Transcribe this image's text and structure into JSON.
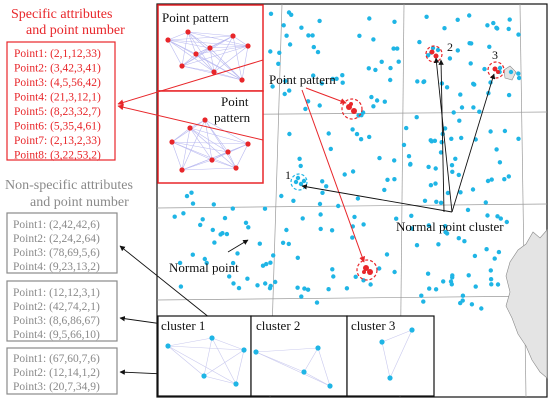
{
  "colors": {
    "specific": "#e8262a",
    "nonspecific": "#8a8a8a",
    "points": "#1fb5e5",
    "pattern_points": "#e8262a",
    "pattern_edges": "#b9b9f0",
    "arrows": "#111111",
    "map_grid": "#9a9a9a"
  },
  "specific": {
    "title_line1": "Specific attributes",
    "title_line2": "and point number",
    "items": [
      "Point1: (2,1,12,33)",
      "Point2: (3,42,3,41)",
      "Point3: (4,5,56,42)",
      "Point4: (21,3,12,1)",
      "Point5: (8,23,32,7)",
      "Point6: (5,35,4,61)",
      "Point7: (2,13,2,33)",
      "Point8: (3,22,53,2)"
    ]
  },
  "nonspecific": {
    "title_line1": "Non-specific attributes",
    "title_line2": "and point number",
    "groups": [
      [
        "Point1: (2,42,42,6)",
        "Point2: (2,24,2,64)",
        "Point3: (78,69,5,6)",
        "Point4: (9,23,13,2)"
      ],
      [
        "Point1: (12,12,3,1)",
        "Point2: (42,74,2,1)",
        "Point3: (8,6,86,67)",
        "Point4: (9,5,66,10)"
      ],
      [
        "Point1: (67,60,7,6)",
        "Point2: (12,14,1,2)",
        "Point3: (20,7,34,9)"
      ]
    ]
  },
  "map_labels": {
    "pattern_box_title": "Point pattern",
    "pattern_box2_line1": "Point",
    "pattern_box2_line2": "pattern",
    "point_pattern": "Point pattern",
    "normal_point": "Normal point",
    "normal_cluster": "Normal point cluster",
    "marker1": "1",
    "marker2": "2",
    "marker3": "3"
  },
  "clusters": {
    "cluster1": "cluster 1",
    "cluster2": "cluster 2",
    "cluster3": "cluster 3"
  }
}
